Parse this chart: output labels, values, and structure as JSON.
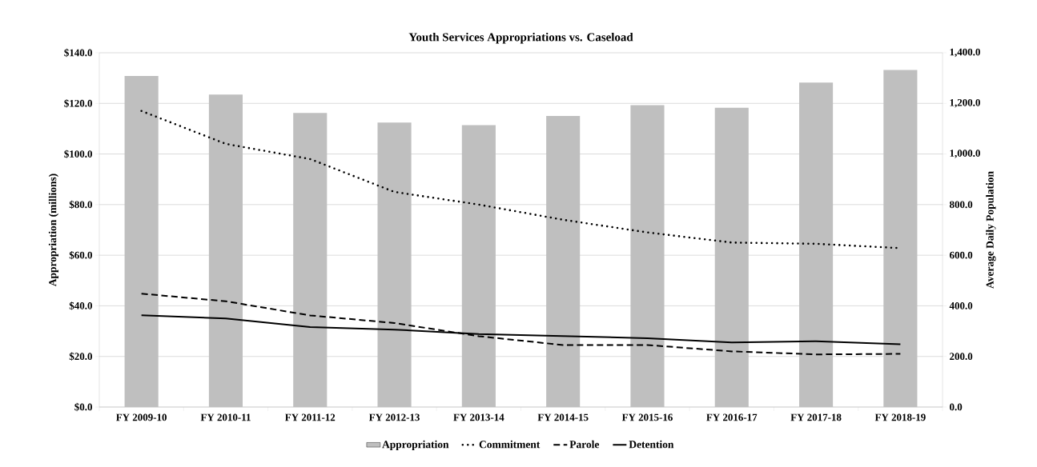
{
  "chart_data": {
    "type": "bar",
    "title": "Youth Services Appropriations vs. Caseload",
    "ylabel": "Appropriation  (millions)",
    "y2label": "Average Daily Population",
    "categories": [
      "FY 2009-10",
      "FY 2010-11",
      "FY 2011-12",
      "FY 2012-13",
      "FY 2013-14",
      "FY 2014-15",
      "FY 2015-16",
      "FY 2016-17",
      "FY 2017-18",
      "FY 2018-19"
    ],
    "series": [
      {
        "name": "Appropriation",
        "color": "#bfbfbf",
        "values": [
          130.8,
          123.5,
          116.2,
          112.4,
          111.4,
          115.0,
          119.3,
          118.3,
          128.2,
          133.2
        ]
      },
      {
        "name": "Commitment",
        "type": "line",
        "axis": "y2",
        "line_style": "dotted",
        "color": "#000000",
        "values": [
          1170,
          1040,
          980,
          850,
          800,
          740,
          690,
          650,
          645,
          628
        ]
      },
      {
        "name": "Parole",
        "type": "line",
        "axis": "y2",
        "line_style": "dashed",
        "color": "#000000",
        "values": [
          448,
          418,
          362,
          332,
          280,
          245,
          245,
          220,
          208,
          210
        ]
      },
      {
        "name": "Detention",
        "type": "line",
        "axis": "y2",
        "line_style": "solid",
        "color": "#000000",
        "values": [
          363,
          350,
          316,
          306,
          288,
          280,
          272,
          255,
          260,
          248
        ]
      }
    ],
    "ylim": [
      0,
      140
    ],
    "yticks": [
      {
        "value": 0,
        "label": "$0.0"
      },
      {
        "value": 20,
        "label": "$20.0"
      },
      {
        "value": 40,
        "label": "$40.0"
      },
      {
        "value": 60,
        "label": "$60.0"
      },
      {
        "value": 80,
        "label": "$80.0"
      },
      {
        "value": 100,
        "label": "$100.0"
      },
      {
        "value": 120,
        "label": "$120.0"
      },
      {
        "value": 140,
        "label": "$140.0"
      }
    ],
    "y2lim": [
      0,
      1400
    ],
    "y2ticks": [
      {
        "value": 0,
        "label": "0.0"
      },
      {
        "value": 200,
        "label": "200.0"
      },
      {
        "value": 400,
        "label": "400.0"
      },
      {
        "value": 600,
        "label": "600.0"
      },
      {
        "value": 800,
        "label": "800.0"
      },
      {
        "value": 1000,
        "label": "1,000.0"
      },
      {
        "value": 1200,
        "label": "1,200.0"
      },
      {
        "value": 1400,
        "label": "1,400.0"
      }
    ],
    "grid": "y",
    "legend": "bottom",
    "marker": "none"
  }
}
